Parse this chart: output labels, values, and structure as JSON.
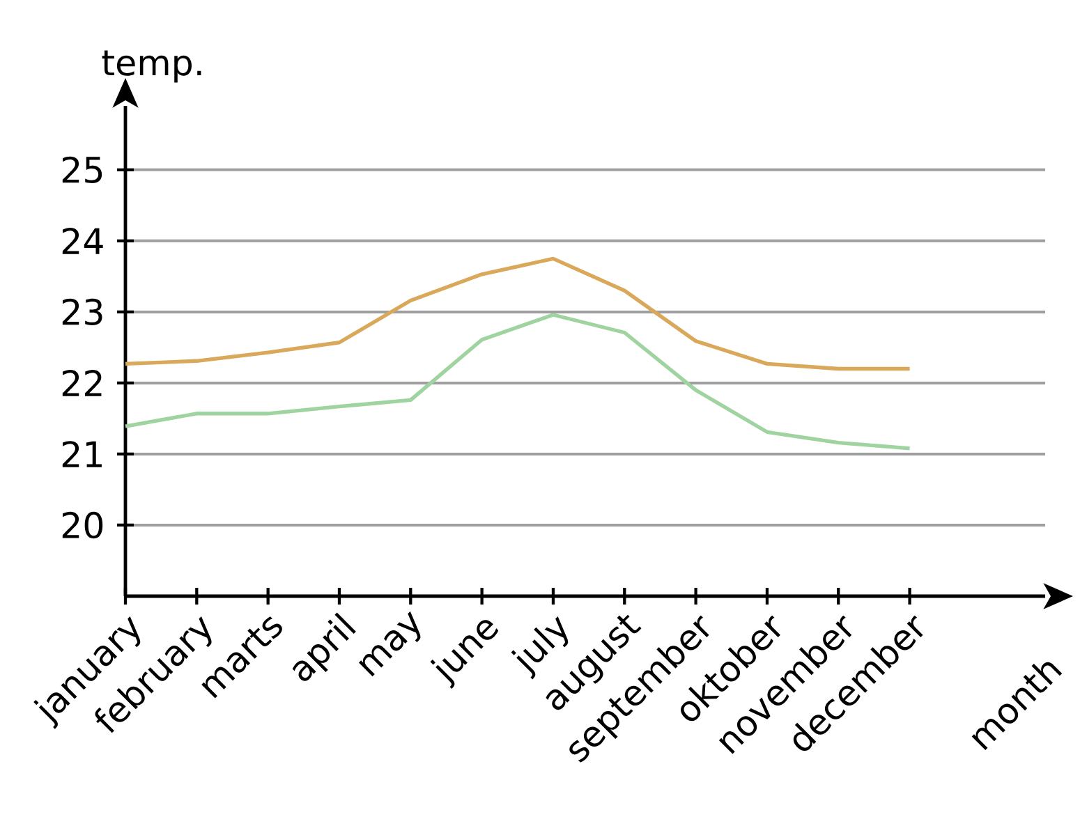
{
  "chart_data": {
    "type": "line",
    "xlabel": "month",
    "ylabel": "temp.",
    "categories": [
      "january",
      "february",
      "marts",
      "april",
      "may",
      "june",
      "july",
      "august",
      "september",
      "oktober",
      "november",
      "december"
    ],
    "series": [
      {
        "color": "#d9a85a",
        "values": [
          22.27,
          22.31,
          22.43,
          22.57,
          23.16,
          23.53,
          23.75,
          23.3,
          22.59,
          22.27,
          22.2,
          22.2
        ]
      },
      {
        "color": "#9fd4a0",
        "values": [
          21.39,
          21.57,
          21.57,
          21.67,
          21.76,
          22.61,
          22.96,
          22.71,
          21.9,
          21.31,
          21.16,
          21.08
        ]
      }
    ],
    "ylim": [
      19,
      25.9
    ],
    "yticks": [
      20,
      21,
      22,
      23,
      24,
      25
    ],
    "grid": "y"
  }
}
